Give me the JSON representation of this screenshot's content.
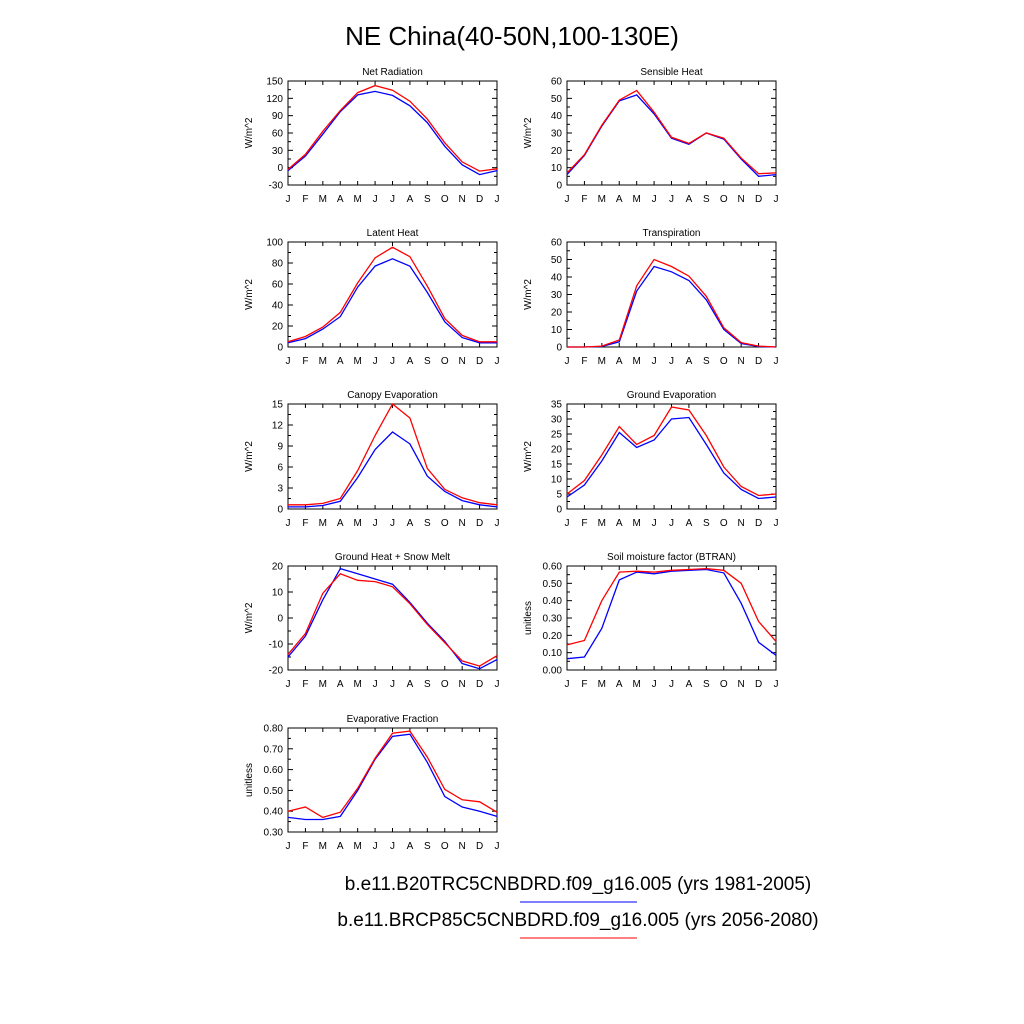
{
  "title": "NE China(40-50N,100-130E)",
  "colors": {
    "series_1": "#0000ff",
    "series_2": "#ff0000",
    "axis": "#000000"
  },
  "legend": [
    {
      "label": "b.e11.B20TRC5CNBDRD.f09_g16.005 (yrs 1981-2005)",
      "color": "#0000ff"
    },
    {
      "label": "b.e11.BRCP85C5CNBDRD.f09_g16.005 (yrs 2056-2080)",
      "color": "#ff0000"
    }
  ],
  "chart_data": [
    {
      "type": "line",
      "title": "Net Radiation",
      "ylabel": "W/m^2",
      "categories": [
        "J",
        "F",
        "M",
        "A",
        "M",
        "J",
        "J",
        "A",
        "S",
        "O",
        "N",
        "D",
        "J"
      ],
      "ylim": [
        -30,
        150
      ],
      "yticks": [
        "-30",
        "0",
        "30",
        "60",
        "90",
        "120",
        "150"
      ],
      "series": [
        {
          "values": [
            -5,
            20,
            58,
            97,
            126,
            132,
            125,
            107,
            78,
            37,
            5,
            -12,
            -5
          ]
        },
        {
          "values": [
            -3,
            23,
            63,
            99,
            130,
            142,
            134,
            115,
            84,
            43,
            10,
            -6,
            -2
          ]
        }
      ]
    },
    {
      "type": "line",
      "title": "Sensible Heat",
      "ylabel": "W/m^2",
      "categories": [
        "J",
        "F",
        "M",
        "A",
        "M",
        "J",
        "J",
        "A",
        "S",
        "O",
        "N",
        "D",
        "J"
      ],
      "ylim": [
        0,
        60
      ],
      "yticks": [
        "0",
        "10",
        "20",
        "30",
        "40",
        "50",
        "60"
      ],
      "series": [
        {
          "values": [
            6,
            17,
            34,
            48.5,
            52,
            41,
            27,
            23.5,
            30,
            26.5,
            15,
            5,
            6
          ]
        },
        {
          "values": [
            7,
            17.5,
            34.5,
            49,
            54.5,
            42,
            27.5,
            24,
            30,
            27,
            15.5,
            6.5,
            7
          ]
        }
      ]
    },
    {
      "type": "line",
      "title": "Latent Heat",
      "ylabel": "W/m^2",
      "categories": [
        "J",
        "F",
        "M",
        "A",
        "M",
        "J",
        "J",
        "A",
        "S",
        "O",
        "N",
        "D",
        "J"
      ],
      "ylim": [
        0,
        100
      ],
      "yticks": [
        "0",
        "20",
        "40",
        "60",
        "80",
        "100"
      ],
      "series": [
        {
          "values": [
            4,
            8,
            17,
            29,
            57,
            77,
            84,
            77,
            52,
            24,
            9,
            4,
            4
          ]
        },
        {
          "values": [
            5,
            10,
            19,
            33,
            61,
            85,
            95,
            86,
            58,
            27,
            11,
            5,
            5
          ]
        }
      ]
    },
    {
      "type": "line",
      "title": "Transpiration",
      "ylabel": "W/m^2",
      "categories": [
        "J",
        "F",
        "M",
        "A",
        "M",
        "J",
        "J",
        "A",
        "S",
        "O",
        "N",
        "D",
        "J"
      ],
      "ylim": [
        0,
        60
      ],
      "yticks": [
        "0",
        "10",
        "20",
        "30",
        "40",
        "50",
        "60"
      ],
      "series": [
        {
          "values": [
            0,
            0,
            0.3,
            3,
            32,
            46,
            43,
            38,
            27,
            10,
            2,
            0.3,
            0
          ]
        },
        {
          "values": [
            0,
            0,
            0.5,
            4,
            35,
            50,
            46,
            40.5,
            29,
            11,
            2.5,
            0.5,
            0
          ]
        }
      ]
    },
    {
      "type": "line",
      "title": "Canopy Evaporation",
      "ylabel": "W/m^2",
      "categories": [
        "J",
        "F",
        "M",
        "A",
        "M",
        "J",
        "J",
        "A",
        "S",
        "O",
        "N",
        "D",
        "J"
      ],
      "ylim": [
        0,
        15
      ],
      "yticks": [
        "0",
        "3",
        "6",
        "9",
        "12",
        "15"
      ],
      "series": [
        {
          "values": [
            0.3,
            0.3,
            0.5,
            1.1,
            4.5,
            8.5,
            11,
            9.3,
            4.7,
            2.5,
            1.2,
            0.6,
            0.3
          ]
        },
        {
          "values": [
            0.6,
            0.6,
            0.8,
            1.5,
            5.5,
            10.5,
            15,
            13,
            5.8,
            2.8,
            1.6,
            0.9,
            0.6
          ]
        }
      ]
    },
    {
      "type": "line",
      "title": "Ground Evaporation",
      "ylabel": "W/m^2",
      "categories": [
        "J",
        "F",
        "M",
        "A",
        "M",
        "J",
        "J",
        "A",
        "S",
        "O",
        "N",
        "D",
        "J"
      ],
      "ylim": [
        0,
        35
      ],
      "yticks": [
        "0",
        "5",
        "10",
        "15",
        "20",
        "25",
        "30",
        "35"
      ],
      "series": [
        {
          "values": [
            4,
            8,
            16,
            25.5,
            20.5,
            23,
            30,
            30.5,
            21.5,
            12,
            6.5,
            3.5,
            4
          ]
        },
        {
          "values": [
            5,
            9.5,
            18,
            27.5,
            21.5,
            24.5,
            34,
            33,
            24.5,
            14,
            7.5,
            4.5,
            5
          ]
        }
      ]
    },
    {
      "type": "line",
      "title": "Ground Heat + Snow Melt",
      "ylabel": "W/m^2",
      "categories": [
        "J",
        "F",
        "M",
        "A",
        "M",
        "J",
        "J",
        "A",
        "S",
        "O",
        "N",
        "D",
        "J"
      ],
      "ylim": [
        -20,
        20
      ],
      "yticks": [
        "-20",
        "-10",
        "0",
        "10",
        "20"
      ],
      "series": [
        {
          "values": [
            -15,
            -7,
            7,
            19,
            17,
            15,
            13,
            6,
            -2,
            -9,
            -17.5,
            -19.5,
            -16
          ]
        },
        {
          "values": [
            -14,
            -6,
            9.5,
            17,
            14.5,
            14,
            12,
            5.5,
            -2.5,
            -9.5,
            -16.5,
            -18.5,
            -14.5
          ]
        }
      ]
    },
    {
      "type": "line",
      "title": "Soil moisture factor (BTRAN)",
      "ylabel": "unitless",
      "categories": [
        "J",
        "F",
        "M",
        "A",
        "M",
        "J",
        "J",
        "A",
        "S",
        "O",
        "N",
        "D",
        "J"
      ],
      "ylim": [
        0.0,
        0.6
      ],
      "yticks": [
        "0.00",
        "0.10",
        "0.20",
        "0.30",
        "0.40",
        "0.50",
        "0.60"
      ],
      "series": [
        {
          "values": [
            0.065,
            0.075,
            0.24,
            0.52,
            0.565,
            0.555,
            0.57,
            0.575,
            0.58,
            0.56,
            0.385,
            0.16,
            0.085
          ]
        },
        {
          "values": [
            0.145,
            0.17,
            0.4,
            0.565,
            0.57,
            0.565,
            0.575,
            0.58,
            0.585,
            0.575,
            0.5,
            0.28,
            0.165
          ]
        }
      ]
    },
    {
      "type": "line",
      "title": "Evaporative Fraction",
      "ylabel": "unitless",
      "categories": [
        "J",
        "F",
        "M",
        "A",
        "M",
        "J",
        "J",
        "A",
        "S",
        "O",
        "N",
        "D",
        "J"
      ],
      "ylim": [
        0.3,
        0.8
      ],
      "yticks": [
        "0.30",
        "0.40",
        "0.50",
        "0.60",
        "0.70",
        "0.80"
      ],
      "series": [
        {
          "values": [
            0.37,
            0.36,
            0.36,
            0.375,
            0.5,
            0.65,
            0.76,
            0.77,
            0.635,
            0.47,
            0.42,
            0.4,
            0.375
          ]
        },
        {
          "values": [
            0.4,
            0.42,
            0.37,
            0.395,
            0.51,
            0.655,
            0.775,
            0.785,
            0.66,
            0.505,
            0.455,
            0.445,
            0.395
          ]
        }
      ]
    }
  ]
}
